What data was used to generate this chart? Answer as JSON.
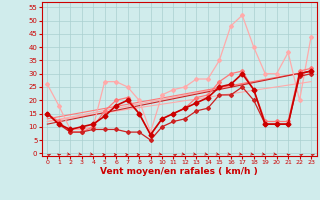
{
  "title": "",
  "xlabel": "Vent moyen/en rafales ( km/h )",
  "background_color": "#d0ecec",
  "grid_color": "#aad0d0",
  "x_ticks": [
    0,
    1,
    2,
    3,
    4,
    5,
    6,
    7,
    8,
    9,
    10,
    11,
    12,
    13,
    14,
    15,
    16,
    17,
    18,
    19,
    20,
    21,
    22,
    23
  ],
  "y_ticks": [
    0,
    5,
    10,
    15,
    20,
    25,
    30,
    35,
    40,
    45,
    50,
    55
  ],
  "ylim": [
    -1,
    57
  ],
  "xlim": [
    -0.5,
    23.5
  ],
  "lines": [
    {
      "x": [
        0,
        1,
        2,
        3,
        4,
        5,
        6,
        7,
        8,
        9,
        10,
        11,
        12,
        13,
        14,
        15,
        16,
        17,
        18,
        19,
        20,
        21,
        22,
        23
      ],
      "y": [
        26,
        18,
        9,
        9,
        10,
        27,
        27,
        25,
        20,
        8,
        22,
        24,
        25,
        28,
        28,
        35,
        48,
        52,
        40,
        30,
        30,
        38,
        20,
        44
      ],
      "color": "#ffaaaa",
      "lw": 0.9,
      "marker": "D",
      "ms": 2.0
    },
    {
      "x": [
        0,
        1,
        2,
        3,
        4,
        5,
        6,
        7,
        8,
        9,
        10,
        11,
        12,
        13,
        14,
        15,
        16,
        17,
        18,
        19,
        20,
        21,
        22,
        23
      ],
      "y": [
        15,
        12,
        8,
        8,
        10,
        16,
        20,
        21,
        15,
        7,
        13,
        15,
        17,
        21,
        22,
        27,
        30,
        31,
        24,
        12,
        12,
        12,
        31,
        32
      ],
      "color": "#ff7777",
      "lw": 0.9,
      "marker": "D",
      "ms": 2.0
    },
    {
      "x": [
        0,
        1,
        2,
        3,
        4,
        5,
        6,
        7,
        8,
        9,
        10,
        11,
        12,
        13,
        14,
        15,
        16,
        17,
        18,
        19,
        20,
        21,
        22,
        23
      ],
      "y": [
        15,
        11,
        8,
        8,
        9,
        9,
        9,
        8,
        8,
        5,
        10,
        12,
        13,
        16,
        17,
        22,
        22,
        25,
        20,
        11,
        11,
        11,
        29,
        30
      ],
      "color": "#cc2222",
      "lw": 0.9,
      "marker": "D",
      "ms": 2.0
    },
    {
      "x": [
        0,
        1,
        2,
        3,
        4,
        5,
        6,
        7,
        8,
        9,
        10,
        11,
        12,
        13,
        14,
        15,
        16,
        17,
        18,
        19,
        20,
        21,
        22,
        23
      ],
      "y": [
        15,
        11,
        9,
        10,
        11,
        14,
        18,
        20,
        15,
        7,
        13,
        15,
        17,
        19,
        21,
        25,
        26,
        30,
        24,
        11,
        11,
        11,
        30,
        31
      ],
      "color": "#cc0000",
      "lw": 1.2,
      "marker": "D",
      "ms": 2.5
    },
    {
      "x": [
        0,
        23
      ],
      "y": [
        12,
        27
      ],
      "color": "#ffaaaa",
      "lw": 0.8,
      "marker": null,
      "ms": 0
    },
    {
      "x": [
        0,
        23
      ],
      "y": [
        12,
        31
      ],
      "color": "#ffaaaa",
      "lw": 0.8,
      "marker": null,
      "ms": 0
    },
    {
      "x": [
        0,
        23
      ],
      "y": [
        13,
        31
      ],
      "color": "#ff7777",
      "lw": 0.8,
      "marker": null,
      "ms": 0
    },
    {
      "x": [
        0,
        23
      ],
      "y": [
        11,
        31
      ],
      "color": "#cc2222",
      "lw": 0.8,
      "marker": null,
      "ms": 0
    }
  ],
  "arrow_directions": [
    225,
    200,
    45,
    45,
    45,
    90,
    90,
    90,
    90,
    90,
    45,
    225,
    45,
    45,
    45,
    45,
    45,
    45,
    45,
    45,
    45,
    200,
    225,
    225
  ],
  "xlabel_fontsize": 6.5,
  "tick_fontsize_x": 4.5,
  "tick_fontsize_y": 5.0
}
